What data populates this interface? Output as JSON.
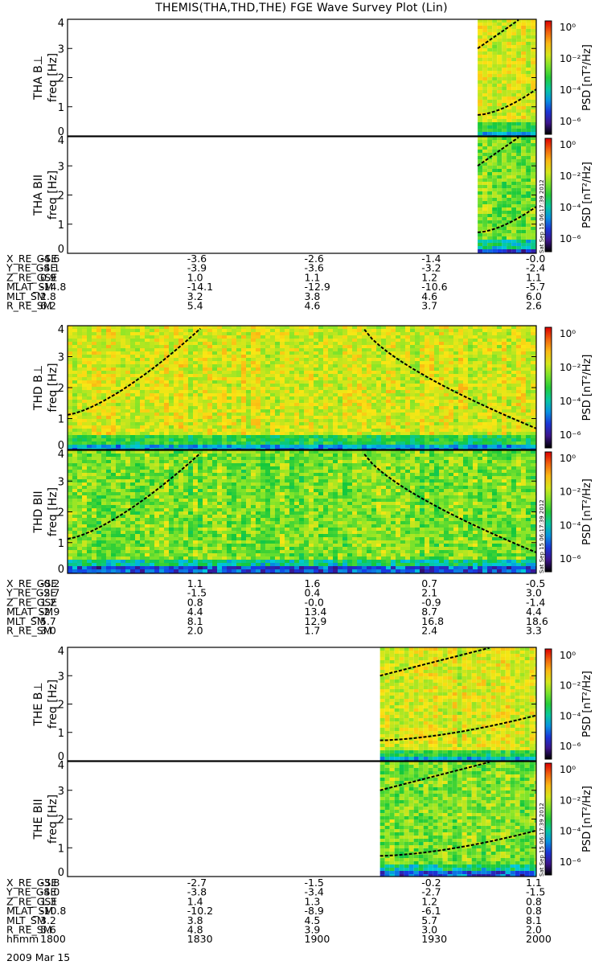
{
  "title": "THEMIS(THA,THD,THE) FGE Wave Survey Plot (Lin)",
  "timestamp": "Sat Sep 15 06:17:39 2012",
  "ylabel": "freq [Hz]",
  "cbar_label": "PSD [nT²/Hz]",
  "cbar_ticks": [
    "10⁰",
    "10⁻²",
    "10⁻⁴",
    "10⁻⁶"
  ],
  "yticks": [
    "0",
    "1",
    "2",
    "3",
    "4"
  ],
  "probes": [
    {
      "id": "THA",
      "panels": [
        {
          "name": "THA B⊥",
          "label": "THA B⊥"
        },
        {
          "name": "THA B∥",
          "label": "THA BII"
        }
      ],
      "data_start_time": "1945",
      "ephemeris": {
        "labels": [
          "X_RE_GSE",
          "Y_RE_GSE",
          "Z_RE_GSE",
          "MLAT_SM",
          "MLT_SM",
          "R_RE_SM"
        ],
        "rows": [
          [
            "-4.6",
            "-3.6",
            "-2.6",
            "-1.4",
            "-0.0"
          ],
          [
            "-4.1",
            "-3.9",
            "-3.6",
            "-3.2",
            "-2.4"
          ],
          [
            "0.9",
            "1.0",
            "1.1",
            "1.2",
            "1.1"
          ],
          [
            "-14.8",
            "-14.1",
            "-12.9",
            "-10.6",
            "-5.7"
          ],
          [
            "2.8",
            "3.2",
            "3.8",
            "4.6",
            "6.0"
          ],
          [
            "6.2",
            "5.4",
            "4.6",
            "3.7",
            "2.6"
          ]
        ]
      }
    },
    {
      "id": "THD",
      "panels": [
        {
          "name": "THD B⊥",
          "label": "THD B⊥"
        },
        {
          "name": "THD B∥",
          "label": "THD BII"
        }
      ],
      "data_start_time": "1800",
      "ephemeris": {
        "labels": [
          "X_RE_GSE",
          "Y_RE_GSE",
          "Z_RE_GSE",
          "MLAT_SM",
          "MLT_SM",
          "R_RE_SM"
        ],
        "rows": [
          [
            "-0.2",
            "1.1",
            "1.6",
            "0.7",
            "-0.5"
          ],
          [
            "-2.7",
            "-1.5",
            "0.4",
            "2.1",
            "3.0"
          ],
          [
            "1.2",
            "0.8",
            "-0.0",
            "-0.9",
            "-1.4"
          ],
          [
            "-2.9",
            "4.4",
            "13.4",
            "8.7",
            "4.4"
          ],
          [
            "5.7",
            "8.1",
            "12.9",
            "16.8",
            "18.6"
          ],
          [
            "3.0",
            "2.0",
            "1.7",
            "2.4",
            "3.3"
          ]
        ]
      }
    },
    {
      "id": "THE",
      "panels": [
        {
          "name": "THE B⊥",
          "label": "THE B⊥"
        },
        {
          "name": "THE B∥",
          "label": "THE BII"
        }
      ],
      "data_start_time": "1920",
      "ephemeris": {
        "labels": [
          "X_RE_GSE",
          "Y_RE_GSE",
          "Z_RE_GSE",
          "MLAT_SM",
          "MLT_SM",
          "R_RE_SM",
          "hhmm"
        ],
        "rows": [
          [
            "-3.8",
            "-2.7",
            "-1.5",
            "-0.2",
            "1.1"
          ],
          [
            "-4.0",
            "-3.8",
            "-3.4",
            "-2.7",
            "-1.5"
          ],
          [
            "1.3",
            "1.4",
            "1.3",
            "1.2",
            "0.8"
          ],
          [
            "-10.8",
            "-10.2",
            "-8.9",
            "-6.1",
            "0.8"
          ],
          [
            "3.2",
            "3.8",
            "4.5",
            "5.7",
            "8.1"
          ],
          [
            "5.6",
            "4.8",
            "3.9",
            "3.0",
            "2.0"
          ],
          [
            "1800",
            "1830",
            "1900",
            "1930",
            "2000"
          ]
        ]
      }
    }
  ],
  "date_label": "2009 Mar 15",
  "chart_data": {
    "type": "heatmap",
    "title": "THEMIS(THA,THD,THE) FGE Wave Survey Plot (Lin)",
    "xlabel": "hhmm",
    "ylabel": "freq [Hz]",
    "xlim": [
      "1800",
      "2000"
    ],
    "ylim": [
      0,
      4
    ],
    "colorbar": {
      "label": "PSD [nT²/Hz]",
      "scale": "log",
      "range": [
        "1e-6",
        "1e1"
      ]
    },
    "x_ticks": [
      "1800",
      "1830",
      "1900",
      "1930",
      "2000"
    ],
    "y_ticks": [
      0,
      1,
      2,
      3,
      4
    ],
    "series": [
      {
        "name": "THA B⊥",
        "data_start": "1945",
        "data_end": "2000"
      },
      {
        "name": "THA B∥",
        "data_start": "1945",
        "data_end": "2000"
      },
      {
        "name": "THD B⊥",
        "data_start": "1800",
        "data_end": "2000"
      },
      {
        "name": "THD B∥",
        "data_start": "1800",
        "data_end": "2000"
      },
      {
        "name": "THE B⊥",
        "data_start": "1920",
        "data_end": "2000"
      },
      {
        "name": "THE B∥",
        "data_start": "1920",
        "data_end": "2000"
      }
    ],
    "colors": {
      "low": "#3020a0",
      "mid": "#20c060",
      "high": "#f8e020",
      "peak": "#e02010"
    }
  }
}
